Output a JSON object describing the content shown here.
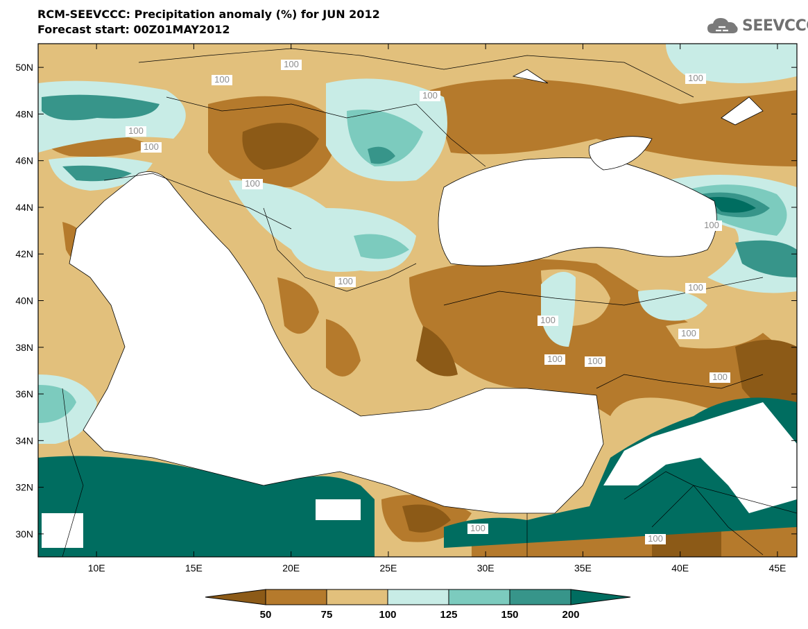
{
  "header": {
    "title": "RCM-SEEVCCC: Precipitation anomaly (%) for JUN 2012",
    "subtitle": "Forecast start: 00Z01MAY2012"
  },
  "logo": {
    "text": "SEEVCCC",
    "icon": "cloud-icon"
  },
  "map": {
    "lat_range": [
      29,
      51
    ],
    "lon_range": [
      7,
      46
    ],
    "lat_ticks": [
      "50N",
      "48N",
      "46N",
      "44N",
      "42N",
      "40N",
      "38N",
      "36N",
      "34N",
      "32N",
      "30N"
    ],
    "lon_ticks": [
      "10E",
      "15E",
      "20E",
      "25E",
      "30E",
      "35E",
      "40E",
      "45E"
    ],
    "contour_labels": [
      "100",
      "100",
      "100",
      "100",
      "100",
      "100",
      "100",
      "100",
      "100",
      "100",
      "100",
      "100",
      "100",
      "100",
      "100",
      "100",
      "100"
    ]
  },
  "colorbar": {
    "levels": [
      "50",
      "75",
      "100",
      "125",
      "150",
      "200"
    ],
    "colors": {
      "below_50": "#8c5a17",
      "50_75": "#b57a2c",
      "75_100": "#e2c07c",
      "100_125": "#c8ece6",
      "125_150": "#7ccbbe",
      "150_200": "#37958a",
      "above_200": "#006d60"
    }
  }
}
